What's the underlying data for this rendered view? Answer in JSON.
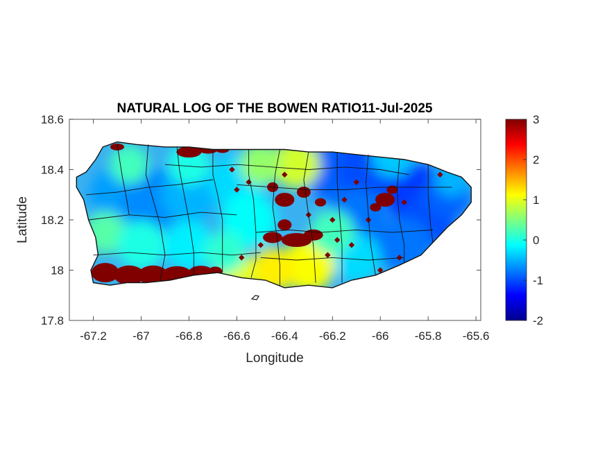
{
  "chart_data": {
    "type": "heatmap",
    "title": "NATURAL LOG OF THE BOWEN RATIO11-Jul-2025",
    "xlabel": "Longitude",
    "ylabel": "Latitude",
    "xlim": [
      -67.3,
      -65.58
    ],
    "ylim": [
      17.8,
      18.6
    ],
    "xticks": [
      "-67.2",
      "-67",
      "-66.8",
      "-66.6",
      "-66.4",
      "-66.2",
      "-66",
      "-65.8",
      "-65.6"
    ],
    "xtick_values": [
      -67.2,
      -67.0,
      -66.8,
      -66.6,
      -66.4,
      -66.2,
      -66.0,
      -65.8,
      -65.6
    ],
    "yticks": [
      "18.6",
      "18.4",
      "18.2",
      "18"
    ],
    "ytick_values": [
      18.6,
      18.4,
      18.2,
      18.0
    ],
    "ytick_bottom": "17.8",
    "colorbar": {
      "colormap": "jet",
      "clim": [
        -2,
        3
      ],
      "ticks": [
        "3",
        "2",
        "1",
        "0",
        "-1",
        "-2"
      ],
      "tick_values": [
        3,
        2,
        1,
        0,
        -1,
        -2
      ],
      "placement": "right"
    },
    "grid": false,
    "regions": [
      {
        "name": "south-coast-high",
        "value": 3,
        "lon": -66.95,
        "lat": 17.99
      },
      {
        "name": "north-west-coast-high",
        "value": 3,
        "lon": -66.75,
        "lat": 18.47
      },
      {
        "name": "central-high",
        "value": 3,
        "lon": -66.35,
        "lat": 18.15
      },
      {
        "name": "central-north-high",
        "value": 3,
        "lon": -66.38,
        "lat": 18.3
      },
      {
        "name": "east-central-high",
        "value": 3,
        "lon": -65.98,
        "lat": 18.28
      },
      {
        "name": "south-central-moderate",
        "value": 1.2,
        "lon": -66.3,
        "lat": 18.02
      },
      {
        "name": "north-central-moderate",
        "value": 0.9,
        "lon": -66.35,
        "lat": 18.42
      }
    ]
  }
}
